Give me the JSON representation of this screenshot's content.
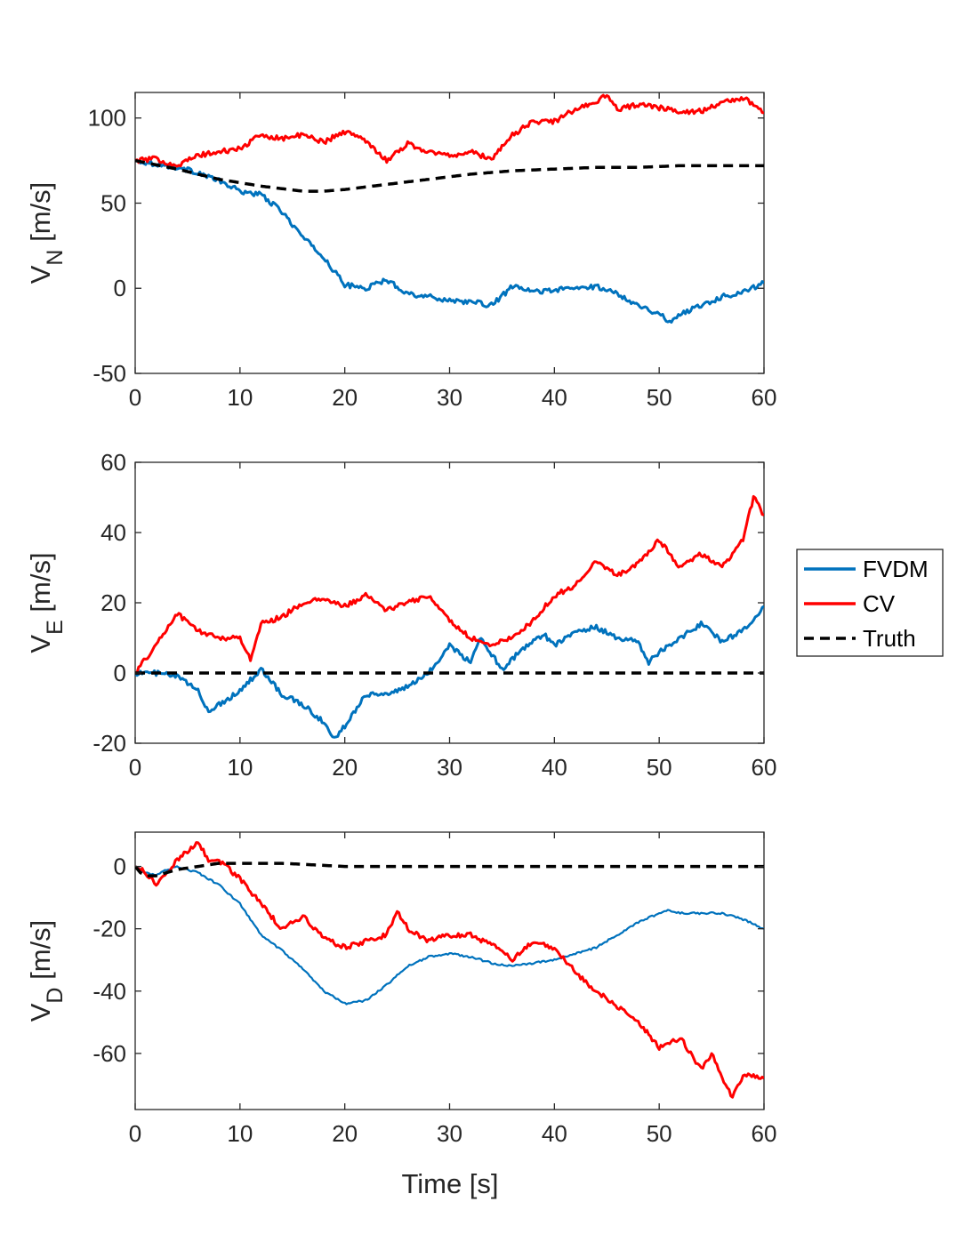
{
  "chart_data": [
    {
      "type": "line",
      "ylabel_main": "V",
      "ylabel_sub": "N",
      "ylabel_unit": " [m/s]",
      "xlim": [
        0,
        60
      ],
      "ylim": [
        -50,
        115
      ],
      "xticks": [
        0,
        10,
        20,
        30,
        40,
        50,
        60
      ],
      "xtick_labels": [
        "0",
        "10",
        "20",
        "30",
        "40",
        "50",
        "60"
      ],
      "yticks": [
        -50,
        0,
        50,
        100
      ],
      "ytick_labels": [
        "-50",
        "0",
        "50",
        "100"
      ],
      "xlabel": "",
      "grid": false,
      "series": [
        {
          "name": "FVDM",
          "color": "#0072BD",
          "noise": 0.0,
          "x": [
            0,
            2,
            4,
            6,
            8,
            10,
            12,
            14,
            16,
            18,
            20,
            22,
            24,
            26,
            28,
            30,
            32,
            34,
            36,
            38,
            40,
            42,
            44,
            46,
            48,
            50,
            51,
            52,
            54,
            56,
            58,
            60
          ],
          "y": [
            75,
            73,
            71,
            68,
            63,
            57,
            55,
            45,
            30,
            18,
            2,
            0,
            5,
            -3,
            -5,
            -7,
            -8,
            -10,
            1,
            -2,
            -1,
            0,
            1,
            -3,
            -10,
            -15,
            -20,
            -15,
            -10,
            -5,
            -2,
            3
          ]
        },
        {
          "name": "CV",
          "color": "#FF0000",
          "noise": 0.0,
          "x": [
            0,
            2,
            4,
            6,
            8,
            10,
            12,
            14,
            16,
            18,
            20,
            22,
            24,
            26,
            28,
            30,
            32,
            34,
            36,
            38,
            40,
            42,
            44,
            45,
            46,
            48,
            50,
            52,
            54,
            56,
            58,
            60
          ],
          "y": [
            75,
            76,
            72,
            78,
            80,
            82,
            90,
            88,
            90,
            86,
            92,
            87,
            75,
            85,
            80,
            78,
            80,
            76,
            90,
            98,
            98,
            105,
            110,
            113,
            105,
            108,
            106,
            104,
            104,
            109,
            112,
            103
          ]
        },
        {
          "name": "Truth",
          "color": "#000000",
          "noise": 0,
          "dashed": true,
          "x": [
            0,
            4,
            8,
            12,
            16,
            18,
            20,
            24,
            28,
            32,
            36,
            40,
            44,
            48,
            52,
            56,
            60
          ],
          "y": [
            75,
            70,
            64,
            60,
            57,
            57,
            58,
            61,
            64,
            67,
            69,
            70,
            71,
            71,
            72,
            72,
            72
          ]
        }
      ]
    },
    {
      "type": "line",
      "ylabel_main": "V",
      "ylabel_sub": "E",
      "ylabel_unit": " [m/s]",
      "xlim": [
        0,
        60
      ],
      "ylim": [
        -20,
        60
      ],
      "xticks": [
        0,
        10,
        20,
        30,
        40,
        50,
        60
      ],
      "xtick_labels": [
        "0",
        "10",
        "20",
        "30",
        "40",
        "50",
        "60"
      ],
      "yticks": [
        -20,
        0,
        20,
        40,
        60
      ],
      "ytick_labels": [
        "-20",
        "0",
        "20",
        "40",
        "60"
      ],
      "xlabel": "",
      "grid": false,
      "series": [
        {
          "name": "FVDM",
          "color": "#0072BD",
          "noise": 0.0,
          "x": [
            0,
            2,
            4,
            6,
            7,
            8,
            10,
            12,
            14,
            16,
            18,
            19,
            20,
            22,
            24,
            26,
            28,
            30,
            32,
            33,
            35,
            37,
            39,
            40,
            42,
            44,
            46,
            48,
            49,
            50,
            52,
            54,
            56,
            58,
            60
          ],
          "y": [
            0,
            0,
            -1,
            -5,
            -11,
            -9,
            -5,
            1,
            -6,
            -9,
            -14,
            -19,
            -15,
            -6,
            -6,
            -4,
            0,
            8,
            3,
            10,
            1,
            7,
            11,
            8,
            12,
            13,
            10,
            9,
            3,
            6,
            10,
            14,
            9,
            12,
            19
          ]
        },
        {
          "name": "CV",
          "color": "#FF0000",
          "noise": 0.0,
          "x": [
            0,
            2,
            4,
            6,
            8,
            10,
            11,
            12,
            14,
            16,
            18,
            20,
            22,
            24,
            26,
            28,
            30,
            32,
            34,
            36,
            38,
            40,
            42,
            44,
            46,
            48,
            50,
            52,
            54,
            56,
            58,
            59,
            60
          ],
          "y": [
            0,
            8,
            17,
            12,
            10,
            10,
            4,
            14,
            16,
            20,
            21,
            19,
            22,
            18,
            20,
            22,
            15,
            10,
            8,
            10,
            15,
            22,
            25,
            32,
            28,
            31,
            38,
            30,
            34,
            30,
            38,
            50,
            45
          ]
        },
        {
          "name": "Truth",
          "color": "#000000",
          "noise": 0,
          "dashed": true,
          "x": [
            0,
            60
          ],
          "y": [
            0,
            0
          ]
        }
      ]
    },
    {
      "type": "line",
      "ylabel_main": "V",
      "ylabel_sub": "D",
      "ylabel_unit": " [m/s]",
      "xlim": [
        0,
        60
      ],
      "ylim": [
        -78,
        11
      ],
      "xticks": [
        0,
        10,
        20,
        30,
        40,
        50,
        60
      ],
      "xtick_labels": [
        "0",
        "10",
        "20",
        "30",
        "40",
        "50",
        "60"
      ],
      "yticks": [
        -60,
        -40,
        -20,
        0
      ],
      "ytick_labels": [
        "-60",
        "-40",
        "-20",
        "0"
      ],
      "xlabel": "Time [s]",
      "grid": false,
      "series": [
        {
          "name": "FVDM",
          "color": "#0072BD",
          "noise": 0.0,
          "x": [
            0,
            1,
            2,
            3,
            4,
            5,
            6,
            8,
            10,
            12,
            14,
            16,
            18,
            20,
            22,
            24,
            26,
            28,
            30,
            32,
            34,
            36,
            38,
            40,
            42,
            44,
            46,
            48,
            50,
            51,
            52,
            54,
            56,
            58,
            60
          ],
          "y": [
            0,
            -2,
            -3,
            -1,
            0,
            -1,
            -2,
            -6,
            -12,
            -22,
            -27,
            -33,
            -40,
            -44,
            -43,
            -38,
            -32,
            -29,
            -28,
            -29,
            -31,
            -32,
            -31,
            -30,
            -28,
            -26,
            -22,
            -18,
            -15,
            -14,
            -15,
            -15,
            -15,
            -17,
            -20
          ]
        },
        {
          "name": "CV",
          "color": "#FF0000",
          "noise": 0.0,
          "x": [
            0,
            1,
            2,
            4,
            6,
            7,
            8,
            10,
            12,
            14,
            16,
            18,
            20,
            22,
            24,
            25,
            26,
            28,
            30,
            32,
            34,
            36,
            38,
            40,
            42,
            44,
            46,
            48,
            50,
            52,
            54,
            55,
            56,
            57,
            58,
            60
          ],
          "y": [
            0,
            -2,
            -6,
            2,
            8,
            2,
            2,
            -4,
            -12,
            -20,
            -16,
            -23,
            -26,
            -24,
            -22,
            -14,
            -20,
            -24,
            -22,
            -22,
            -25,
            -30,
            -24,
            -26,
            -34,
            -40,
            -45,
            -50,
            -58,
            -55,
            -65,
            -60,
            -68,
            -74,
            -67,
            -68
          ]
        },
        {
          "name": "Truth",
          "color": "#000000",
          "noise": 0,
          "dashed": true,
          "x": [
            0,
            0.5,
            1,
            2,
            3,
            4,
            6,
            8,
            10,
            14,
            20,
            30,
            40,
            50,
            60
          ],
          "y": [
            0,
            -2,
            -3,
            -3,
            -2,
            -1,
            0,
            1,
            1,
            1,
            0,
            0,
            0,
            0,
            0
          ]
        }
      ]
    }
  ],
  "legend": {
    "position": "right",
    "entries": [
      {
        "label": "FVDM",
        "color": "#0072BD",
        "dashed": false
      },
      {
        "label": "CV",
        "color": "#FF0000",
        "dashed": false
      },
      {
        "label": "Truth",
        "color": "#000000",
        "dashed": true
      }
    ]
  }
}
